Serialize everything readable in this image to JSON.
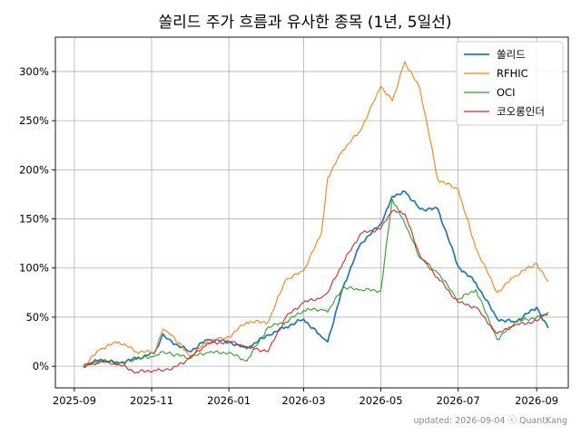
{
  "chart_data": {
    "type": "line",
    "title": "쏠리드 주가 흐름과 유사한 종목 (1년, 5일선)",
    "xlabel": "",
    "ylabel": "",
    "x_ticks": [
      "2025-09",
      "2025-11",
      "2026-01",
      "2026-03",
      "2026-05",
      "2026-07",
      "2026-09"
    ],
    "y_ticks": [
      "0%",
      "50%",
      "100%",
      "150%",
      "200%",
      "250%",
      "300%"
    ],
    "xlim": [
      "2025-08-17",
      "2026-09-26"
    ],
    "ylim": [
      -0.22,
      3.35
    ],
    "grid": true,
    "legend_position": "top-right",
    "x": [
      "2025-09-08",
      "2025-09-22",
      "2025-10-06",
      "2025-10-20",
      "2025-11-03",
      "2025-11-10",
      "2025-11-17",
      "2025-12-01",
      "2025-12-15",
      "2026-01-01",
      "2026-01-15",
      "2026-02-01",
      "2026-02-15",
      "2026-03-01",
      "2026-03-15",
      "2026-03-20",
      "2026-04-01",
      "2026-04-15",
      "2026-05-01",
      "2026-05-10",
      "2026-05-20",
      "2026-06-01",
      "2026-06-15",
      "2026-07-01",
      "2026-07-15",
      "2026-08-01",
      "2026-08-15",
      "2026-09-01",
      "2026-09-10"
    ],
    "series": [
      {
        "name": "쏠리드",
        "color": "#1f77b4",
        "values": [
          0.0,
          0.07,
          0.03,
          0.08,
          0.13,
          0.33,
          0.25,
          0.15,
          0.27,
          0.25,
          0.18,
          0.32,
          0.4,
          0.48,
          0.3,
          0.25,
          0.8,
          1.25,
          1.45,
          1.73,
          1.78,
          1.6,
          1.6,
          1.02,
          0.85,
          0.48,
          0.45,
          0.6,
          0.39
        ]
      },
      {
        "name": "RFHIC",
        "color": "#ff7f0e",
        "values": [
          0.0,
          0.18,
          0.25,
          0.15,
          0.14,
          0.38,
          0.32,
          0.1,
          0.25,
          0.3,
          0.45,
          0.45,
          0.88,
          0.97,
          1.35,
          1.92,
          2.2,
          2.4,
          2.85,
          2.7,
          3.1,
          2.82,
          1.9,
          1.8,
          1.2,
          0.75,
          0.92,
          1.05,
          0.86
        ]
      },
      {
        "name": "OCI",
        "color": "#2ca02c",
        "values": [
          0.0,
          0.05,
          0.03,
          0.07,
          0.1,
          0.15,
          0.12,
          0.09,
          0.14,
          0.14,
          0.05,
          0.4,
          0.45,
          0.57,
          0.58,
          0.55,
          0.8,
          0.78,
          0.77,
          1.7,
          1.45,
          1.1,
          0.95,
          0.68,
          0.78,
          0.27,
          0.45,
          0.5,
          0.52
        ]
      },
      {
        "name": "코오롱인더",
        "color": "#d62728",
        "values": [
          0.0,
          0.05,
          0.02,
          -0.06,
          -0.04,
          -0.05,
          -0.03,
          0.08,
          0.23,
          0.25,
          0.2,
          0.15,
          0.5,
          0.65,
          0.7,
          0.75,
          1.05,
          1.35,
          1.4,
          1.58,
          1.55,
          1.12,
          0.9,
          0.65,
          0.6,
          0.33,
          0.42,
          0.46,
          0.55
        ]
      }
    ]
  },
  "footer": "updated: 2026-09-04 ⓒ QuantKang"
}
